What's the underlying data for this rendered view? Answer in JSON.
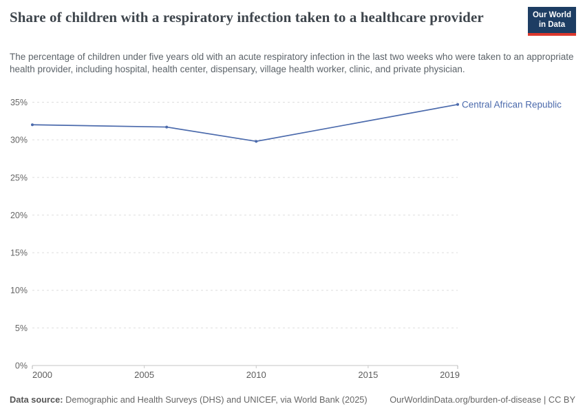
{
  "header": {
    "title": "Share of children with a respiratory infection taken to a healthcare provider",
    "logo": {
      "line1": "Our World",
      "line2": "in Data"
    }
  },
  "subtitle": "The percentage of children under five years old with an acute respiratory infection in the last two weeks who were taken to an appropriate health provider, including hospital, health center, dispensary, village health worker, clinic, and private physician.",
  "chart_data": {
    "type": "line",
    "title": "Share of children with a respiratory infection taken to a healthcare provider",
    "unit": "%",
    "xlim": [
      2000,
      2019
    ],
    "ylim": [
      0,
      35
    ],
    "x_ticks": [
      2000,
      2005,
      2010,
      2015,
      2019
    ],
    "y_ticks": [
      0,
      5,
      10,
      15,
      20,
      25,
      30,
      35
    ],
    "grid": "horizontal-dashed",
    "legend_position": "end-of-line-label",
    "series": [
      {
        "name": "Central African Republic",
        "color": "#4b6aac",
        "points": [
          {
            "x": 2000,
            "y": 32.0
          },
          {
            "x": 2006,
            "y": 31.7
          },
          {
            "x": 2010,
            "y": 29.8
          },
          {
            "x": 2019,
            "y": 34.7
          }
        ]
      }
    ]
  },
  "colors": {
    "accent_line": "#4b6aac",
    "gridline": "#dddddd",
    "axis_line": "#c4c4c4",
    "y_label": "#666666",
    "x_label": "#5c5c5c",
    "logo_bg": "#1d3d63",
    "logo_red": "#dc382d"
  },
  "footer": {
    "datasource_label": "Data source:",
    "datasource_text": "Demographic and Health Surveys (DHS) and UNICEF, via World Bank (2025)",
    "link": "OurWorldinData.org/burden-of-disease | CC BY"
  }
}
